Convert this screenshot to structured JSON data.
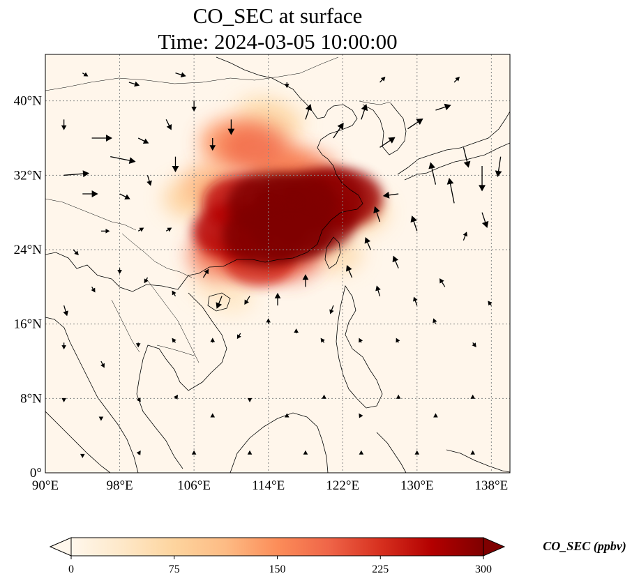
{
  "title": {
    "line1": "CO_SEC at surface",
    "line2": "Time: 2024-03-05 10:00:00"
  },
  "map": {
    "lon_range": [
      90,
      140
    ],
    "lat_range": [
      0,
      45
    ],
    "lon_ticks": [
      {
        "value": 90,
        "label": "90°E"
      },
      {
        "value": 98,
        "label": "98°E"
      },
      {
        "value": 106,
        "label": "106°E"
      },
      {
        "value": 114,
        "label": "114°E"
      },
      {
        "value": 122,
        "label": "122°E"
      },
      {
        "value": 130,
        "label": "130°E"
      },
      {
        "value": 138,
        "label": "138°E"
      }
    ],
    "lat_ticks": [
      {
        "value": 0,
        "label": "0°"
      },
      {
        "value": 8,
        "label": "8°N"
      },
      {
        "value": 16,
        "label": "16°N"
      },
      {
        "value": 24,
        "label": "24°N"
      },
      {
        "value": 32,
        "label": "32°N"
      },
      {
        "value": 40,
        "label": "40°N"
      }
    ],
    "gridlines": true,
    "background_color": "#fff6eb"
  },
  "colorbar": {
    "label": "CO_SEC (ppbv)",
    "colormap": "OrRd",
    "range": [
      0,
      300
    ],
    "extend": "both",
    "ticks": [
      {
        "value": 0,
        "label": "0"
      },
      {
        "value": 75,
        "label": "75"
      },
      {
        "value": 150,
        "label": "150"
      },
      {
        "value": 225,
        "label": "225"
      },
      {
        "value": 300,
        "label": "300"
      }
    ],
    "stops": [
      "#fff7ec",
      "#fee8c8",
      "#fdd49e",
      "#fdbb84",
      "#fc8d59",
      "#ef6548",
      "#d7301f",
      "#b30000",
      "#7f0000"
    ]
  },
  "plume": [
    {
      "lon": 110,
      "lat": 35.5,
      "value": 150
    },
    {
      "lon": 112.5,
      "lat": 35,
      "value": 180
    },
    {
      "lon": 115,
      "lat": 33,
      "value": 150
    },
    {
      "lon": 118,
      "lat": 32,
      "value": 170
    },
    {
      "lon": 111,
      "lat": 29,
      "value": 250
    },
    {
      "lon": 114,
      "lat": 29,
      "value": 300
    },
    {
      "lon": 117,
      "lat": 29,
      "value": 300
    },
    {
      "lon": 120,
      "lat": 29.5,
      "value": 290
    },
    {
      "lon": 122,
      "lat": 29.5,
      "value": 280
    },
    {
      "lon": 110,
      "lat": 26,
      "value": 260
    },
    {
      "lon": 113.5,
      "lat": 25.5,
      "value": 300
    },
    {
      "lon": 116.5,
      "lat": 26,
      "value": 300
    },
    {
      "lon": 119,
      "lat": 27,
      "value": 290
    },
    {
      "lon": 109,
      "lat": 23.5,
      "value": 180
    },
    {
      "lon": 113,
      "lat": 23,
      "value": 230
    },
    {
      "lon": 116,
      "lat": 23.5,
      "value": 200
    },
    {
      "lon": 108,
      "lat": 31,
      "value": 120
    },
    {
      "lon": 105.5,
      "lat": 29.5,
      "value": 80
    },
    {
      "lon": 113,
      "lat": 38.5,
      "value": 60
    },
    {
      "lon": 115,
      "lat": 37.5,
      "value": 70
    },
    {
      "lon": 124,
      "lat": 28,
      "value": 80
    },
    {
      "lon": 121.5,
      "lat": 23.5,
      "value": 60
    },
    {
      "lon": 110,
      "lat": 19,
      "value": 40
    },
    {
      "lon": 108,
      "lat": 20.5,
      "value": 35
    }
  ],
  "wind": [
    {
      "lon": 92,
      "lat": 38,
      "u": 0,
      "v": -1
    },
    {
      "lon": 95,
      "lat": 36,
      "u": 2,
      "v": 0
    },
    {
      "lon": 97,
      "lat": 34,
      "u": 2.5,
      "v": -0.5
    },
    {
      "lon": 100,
      "lat": 36,
      "u": 1,
      "v": -0.5
    },
    {
      "lon": 103,
      "lat": 38,
      "u": 0.5,
      "v": -1
    },
    {
      "lon": 106,
      "lat": 40,
      "u": 0,
      "v": -1
    },
    {
      "lon": 110,
      "lat": 38,
      "u": 0,
      "v": -1.5
    },
    {
      "lon": 92,
      "lat": 32,
      "u": 2.5,
      "v": 0.2
    },
    {
      "lon": 94,
      "lat": 30,
      "u": 1.5,
      "v": 0
    },
    {
      "lon": 98,
      "lat": 30,
      "u": 1,
      "v": -0.5
    },
    {
      "lon": 101,
      "lat": 32,
      "u": 0.3,
      "v": -1
    },
    {
      "lon": 104,
      "lat": 34,
      "u": 0,
      "v": -1.5
    },
    {
      "lon": 108,
      "lat": 36,
      "u": 0,
      "v": -1.2
    },
    {
      "lon": 118,
      "lat": 38,
      "u": 0.5,
      "v": 1.5
    },
    {
      "lon": 121,
      "lat": 36,
      "u": 1,
      "v": 1.5
    },
    {
      "lon": 124,
      "lat": 38,
      "u": 0.5,
      "v": 1.5
    },
    {
      "lon": 126,
      "lat": 35,
      "u": 1.5,
      "v": 1
    },
    {
      "lon": 129,
      "lat": 37,
      "u": 1.5,
      "v": 1
    },
    {
      "lon": 132,
      "lat": 39,
      "u": 1.5,
      "v": 0.5
    },
    {
      "lon": 135,
      "lat": 35,
      "u": 0.5,
      "v": -2
    },
    {
      "lon": 137,
      "lat": 33,
      "u": 0,
      "v": -2.5
    },
    {
      "lon": 139,
      "lat": 34,
      "u": -0.3,
      "v": -2
    },
    {
      "lon": 132,
      "lat": 31,
      "u": -0.5,
      "v": 2.2
    },
    {
      "lon": 134,
      "lat": 29,
      "u": -0.5,
      "v": 2.5
    },
    {
      "lon": 137,
      "lat": 28,
      "u": 0.5,
      "v": -1.5
    },
    {
      "lon": 128,
      "lat": 30,
      "u": -1.5,
      "v": -0.2
    },
    {
      "lon": 126,
      "lat": 27,
      "u": -0.5,
      "v": 1.5
    },
    {
      "lon": 130,
      "lat": 26,
      "u": -0.5,
      "v": 1.5
    },
    {
      "lon": 125,
      "lat": 24,
      "u": -0.5,
      "v": 1.2
    },
    {
      "lon": 128,
      "lat": 22,
      "u": -0.5,
      "v": 1.2
    },
    {
      "lon": 123,
      "lat": 21,
      "u": -0.5,
      "v": 1.2
    },
    {
      "lon": 126,
      "lat": 19,
      "u": -0.3,
      "v": 1
    },
    {
      "lon": 130,
      "lat": 18,
      "u": -0.3,
      "v": 0.8
    },
    {
      "lon": 133,
      "lat": 20,
      "u": -0.5,
      "v": 0.8
    },
    {
      "lon": 135,
      "lat": 25,
      "u": 0.3,
      "v": 0.8
    },
    {
      "lon": 121,
      "lat": 18,
      "u": -0.3,
      "v": -0.8
    },
    {
      "lon": 118,
      "lat": 20,
      "u": 0,
      "v": 1.2
    },
    {
      "lon": 115,
      "lat": 18,
      "u": 0,
      "v": 1.2
    },
    {
      "lon": 112,
      "lat": 19,
      "u": -0.5,
      "v": -0.8
    },
    {
      "lon": 109,
      "lat": 19,
      "u": -0.5,
      "v": -1.2
    },
    {
      "lon": 107,
      "lat": 21,
      "u": 0.5,
      "v": 0.8
    },
    {
      "lon": 104,
      "lat": 19,
      "u": -0.3,
      "v": 0.5
    },
    {
      "lon": 101,
      "lat": 21,
      "u": -0.3,
      "v": -0.5
    },
    {
      "lon": 98,
      "lat": 22,
      "u": 0,
      "v": -0.5
    },
    {
      "lon": 95,
      "lat": 20,
      "u": 0.3,
      "v": -0.5
    },
    {
      "lon": 92,
      "lat": 18,
      "u": 0.3,
      "v": -1
    },
    {
      "lon": 93,
      "lat": 24,
      "u": 0.5,
      "v": -0.5
    },
    {
      "lon": 96,
      "lat": 26,
      "u": 0.8,
      "v": 0
    },
    {
      "lon": 100,
      "lat": 26,
      "u": 0.5,
      "v": 0.3
    },
    {
      "lon": 103,
      "lat": 26,
      "u": 0.5,
      "v": 0.3
    },
    {
      "lon": 92,
      "lat": 14,
      "u": 0,
      "v": -0.6
    },
    {
      "lon": 96,
      "lat": 12,
      "u": 0.3,
      "v": -0.6
    },
    {
      "lon": 100,
      "lat": 14,
      "u": 0,
      "v": -0.4
    },
    {
      "lon": 104,
      "lat": 14,
      "u": -0.3,
      "v": 0.4
    },
    {
      "lon": 108,
      "lat": 14,
      "u": 0,
      "v": 0.4
    },
    {
      "lon": 111,
      "lat": 15,
      "u": -0.3,
      "v": -0.5
    },
    {
      "lon": 114,
      "lat": 16,
      "u": 0,
      "v": 0.5
    },
    {
      "lon": 117,
      "lat": 15,
      "u": 0,
      "v": 0.4
    },
    {
      "lon": 120,
      "lat": 14,
      "u": -0.3,
      "v": 0.4
    },
    {
      "lon": 124,
      "lat": 14,
      "u": -0.2,
      "v": 0.4
    },
    {
      "lon": 128,
      "lat": 14,
      "u": -0.2,
      "v": 0.4
    },
    {
      "lon": 132,
      "lat": 16,
      "u": -0.2,
      "v": 0.5
    },
    {
      "lon": 136,
      "lat": 14,
      "u": 0.3,
      "v": -0.4
    },
    {
      "lon": 138,
      "lat": 18,
      "u": -0.3,
      "v": 0.4
    },
    {
      "lon": 92,
      "lat": 8,
      "u": 0,
      "v": -0.3
    },
    {
      "lon": 96,
      "lat": 6,
      "u": 0,
      "v": -0.3
    },
    {
      "lon": 100,
      "lat": 8,
      "u": 0.2,
      "v": -0.3
    },
    {
      "lon": 104,
      "lat": 8,
      "u": 0.2,
      "v": 0.3
    },
    {
      "lon": 108,
      "lat": 6,
      "u": 0,
      "v": 0.3
    },
    {
      "lon": 112,
      "lat": 8,
      "u": 0,
      "v": -0.3
    },
    {
      "lon": 116,
      "lat": 6,
      "u": 0,
      "v": 0.3
    },
    {
      "lon": 120,
      "lat": 8,
      "u": 0,
      "v": 0.3
    },
    {
      "lon": 124,
      "lat": 6,
      "u": -0.2,
      "v": 0.3
    },
    {
      "lon": 128,
      "lat": 8,
      "u": 0,
      "v": 0.3
    },
    {
      "lon": 132,
      "lat": 6,
      "u": 0,
      "v": 0.3
    },
    {
      "lon": 136,
      "lat": 8,
      "u": 0,
      "v": 0.3
    },
    {
      "lon": 94,
      "lat": 2,
      "u": 0,
      "v": -0.3
    },
    {
      "lon": 100,
      "lat": 2,
      "u": 0.2,
      "v": 0.3
    },
    {
      "lon": 106,
      "lat": 2,
      "u": 0,
      "v": 0.3
    },
    {
      "lon": 112,
      "lat": 2,
      "u": 0,
      "v": 0.3
    },
    {
      "lon": 118,
      "lat": 2,
      "u": 0,
      "v": 0.3
    },
    {
      "lon": 124,
      "lat": 2,
      "u": 0,
      "v": 0.3
    },
    {
      "lon": 130,
      "lat": 2,
      "u": 0,
      "v": 0.3
    },
    {
      "lon": 136,
      "lat": 2,
      "u": 0,
      "v": 0.3
    },
    {
      "lon": 99,
      "lat": 42,
      "u": 1,
      "v": -0.3
    },
    {
      "lon": 104,
      "lat": 43,
      "u": 1,
      "v": -0.3
    },
    {
      "lon": 94,
      "lat": 43,
      "u": 0.5,
      "v": -0.3
    },
    {
      "lon": 116,
      "lat": 42,
      "u": 0,
      "v": -0.5
    },
    {
      "lon": 126,
      "lat": 42,
      "u": 0.5,
      "v": 0.5
    },
    {
      "lon": 134,
      "lat": 42,
      "u": 0.5,
      "v": 0.5
    }
  ]
}
